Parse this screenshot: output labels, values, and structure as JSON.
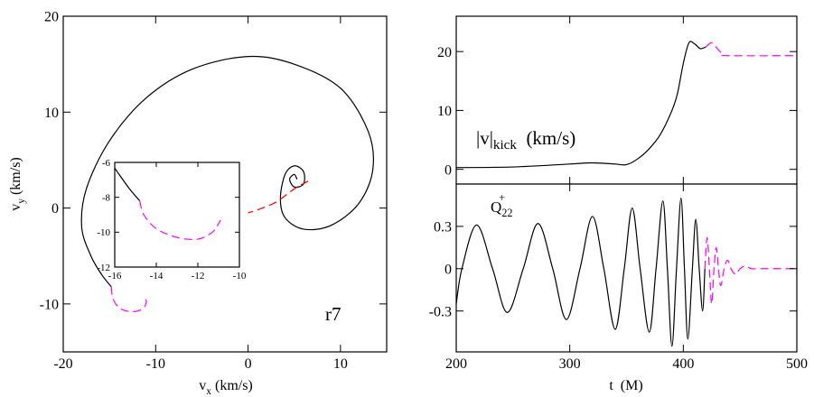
{
  "chart_data": [
    {
      "type": "line",
      "xlabel": [
        {
          "text": "v"
        },
        {
          "text": "x",
          "shift": "sub"
        },
        {
          "text": " (km/s)"
        }
      ],
      "ylabel": [
        {
          "text": "v"
        },
        {
          "text": "y",
          "shift": "sub"
        },
        {
          "text": " (km/s)"
        }
      ],
      "annotation": [
        {
          "text": "r7"
        }
      ],
      "xlim": [
        -20,
        15
      ],
      "ylim": [
        -15,
        20
      ],
      "xticks": [
        -20,
        -10,
        0,
        10
      ],
      "yticks": [
        -10,
        0,
        10,
        20
      ],
      "series": [
        {
          "color": "#000000",
          "line_style": "solid",
          "x": [
            5.3,
            5,
            4.5,
            5,
            6,
            6,
            5,
            4,
            3.5,
            4,
            6,
            9,
            12,
            13.5,
            13,
            10,
            5,
            0,
            -6,
            -11,
            -15,
            -17.5,
            -18,
            -17,
            -15.8,
            -14.8
          ],
          "values": [
            3,
            3.5,
            3,
            2.2,
            2.5,
            3.8,
            4.4,
            3.5,
            1,
            -1,
            -2.2,
            -1.8,
            0.5,
            4,
            8,
            12.5,
            15,
            15.8,
            14.5,
            11.5,
            7,
            2,
            -2,
            -5,
            -7,
            -8.2
          ]
        },
        {
          "color": "#ff00ff",
          "line_style": "dashed",
          "x": [
            -14.8,
            -14.6,
            -13.8,
            -12.5,
            -11.4,
            -11,
            -11.2
          ],
          "values": [
            -8.2,
            -9.5,
            -10.5,
            -10.8,
            -10.5,
            -9.8,
            -9.4
          ]
        },
        {
          "color": "#ff0000",
          "line_style": "dashed",
          "x": [
            6.5,
            5,
            3,
            1,
            0
          ],
          "values": [
            2.8,
            2,
            0.6,
            -0.2,
            -0.5
          ]
        }
      ]
    },
    {
      "type": "line",
      "inset": true,
      "xlim": [
        -16,
        -10
      ],
      "ylim": [
        -12,
        -6
      ],
      "xticks": [
        -16,
        -14,
        -12,
        -10
      ],
      "yticks": [
        -12,
        -10,
        -8,
        -6
      ],
      "series": [
        {
          "color": "#000000",
          "line_style": "solid",
          "x": [
            -16.3,
            -15.9,
            -15.3,
            -14.8
          ],
          "values": [
            -5.8,
            -6.5,
            -7.5,
            -8.2
          ]
        },
        {
          "color": "#ff00ff",
          "line_style": "dashed",
          "x": [
            -14.8,
            -14.6,
            -14,
            -13,
            -12,
            -11.3,
            -11,
            -10.9
          ],
          "values": [
            -8.2,
            -9,
            -9.8,
            -10.3,
            -10.4,
            -10,
            -9.5,
            -9.3
          ]
        }
      ]
    },
    {
      "type": "line",
      "label": [
        {
          "text": "|v|"
        },
        {
          "text": "kick",
          "shift": "sub"
        },
        {
          "text": "  (km/s)"
        }
      ],
      "xlim": [
        200,
        500
      ],
      "ylim": [
        -2.5,
        26
      ],
      "xticks": [
        200,
        300,
        400,
        500
      ],
      "xtick_labels": false,
      "yticks": [
        0,
        10,
        20
      ],
      "series": [
        {
          "color": "#000000",
          "line_style": "solid",
          "x": [
            200,
            250,
            300,
            320,
            340,
            350,
            360,
            370,
            380,
            390,
            395,
            400,
            405,
            410,
            415,
            420
          ],
          "values": [
            0.3,
            0.4,
            0.9,
            1.1,
            0.9,
            0.8,
            1.8,
            3.5,
            6,
            10,
            13,
            18,
            21.5,
            21.3,
            20.5,
            20.8
          ]
        },
        {
          "color": "#ff00ff",
          "line_style": "dashed",
          "x": [
            420,
            425,
            430,
            435,
            440,
            500
          ],
          "values": [
            20.8,
            21.5,
            20.5,
            19.5,
            19.3,
            19.3
          ]
        }
      ]
    },
    {
      "type": "line",
      "label": [
        {
          "text": "Q"
        },
        {
          "text": "22",
          "shift": "sub"
        },
        {
          "text": "+",
          "shift": "sup"
        }
      ],
      "xlabel": [
        {
          "text": "t  (M)"
        }
      ],
      "xlim": [
        200,
        500
      ],
      "ylim": [
        -0.59,
        0.6
      ],
      "xticks": [
        200,
        300,
        400,
        500
      ],
      "yticks": [
        -0.3,
        0,
        0.3
      ],
      "series": [
        {
          "color": "#000000",
          "line_style": "solid",
          "x": [
            200,
            205,
            218,
            232,
            245,
            259,
            272,
            285,
            297,
            309,
            320,
            330,
            340,
            348,
            355,
            362,
            370,
            376,
            382,
            386,
            390,
            394,
            398,
            401,
            404,
            408,
            411,
            414,
            417,
            419
          ],
          "values": [
            -0.25,
            0,
            0.31,
            0,
            -0.31,
            0,
            0.32,
            0,
            -0.36,
            0,
            0.37,
            0,
            -0.43,
            0,
            0.43,
            0,
            -0.45,
            0,
            0.48,
            0,
            -0.55,
            0,
            0.5,
            0,
            -0.5,
            0,
            0.35,
            0,
            -0.3,
            0
          ]
        },
        {
          "color": "#ff00ff",
          "line_style": "dashed",
          "x": [
            419,
            421,
            423,
            425,
            427,
            429,
            431,
            433,
            436,
            439,
            442,
            446,
            450,
            455,
            460,
            470,
            500
          ],
          "values": [
            0,
            0.22,
            0,
            -0.25,
            0,
            0.15,
            0,
            -0.12,
            0,
            0.06,
            0,
            -0.04,
            0,
            0.02,
            0,
            0,
            0
          ]
        }
      ]
    }
  ]
}
